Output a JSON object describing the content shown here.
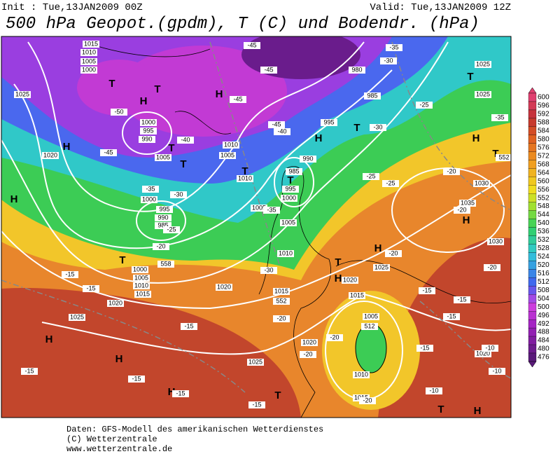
{
  "header": {
    "init": "Init : Tue,13JAN2009 00Z",
    "valid": "Valid: Tue,13JAN2009 12Z",
    "title": "500 hPa Geopot.(gpdm), T (C) und Bodendr. (hPa)"
  },
  "colorbar": {
    "ticks": [
      600,
      596,
      592,
      588,
      584,
      580,
      576,
      572,
      568,
      564,
      560,
      556,
      552,
      548,
      544,
      540,
      536,
      532,
      528,
      524,
      520,
      516,
      512,
      508,
      504,
      500,
      496,
      492,
      488,
      484,
      480,
      476
    ]
  },
  "footer": [
    "Daten: GFS-Modell des amerikanischen Wetterdienstes",
    "(C) Wetterzentrale",
    "www.wetterzentrale.de"
  ],
  "map_labels": [
    "T",
    "T",
    "H",
    "H",
    "T",
    "T",
    "H",
    "H",
    "T",
    "T",
    "H",
    "T",
    "T",
    "H",
    "T",
    "H",
    "H",
    "T",
    "H",
    "T",
    "H",
    "H",
    "H",
    "T",
    "T",
    "H",
    "1015",
    "1010",
    "1005",
    "1000",
    "1025",
    "1000",
    "995",
    "990",
    "1020",
    "1005",
    "1010",
    "1005",
    "1010",
    "985",
    "990",
    "995",
    "1000",
    "1005",
    "1000",
    "995",
    "990",
    "985",
    "1000",
    "1005",
    "1010",
    "1015",
    "1020",
    "1025",
    "1020",
    "1015",
    "1010",
    "1005",
    "980",
    "985",
    "995",
    "1025",
    "1025",
    "1030",
    "1035",
    "1030",
    "1025",
    "1020",
    "1015",
    "1005",
    "1020",
    "1025",
    "1010",
    "1015",
    "1020",
    "-50",
    "-45",
    "-40",
    "-35",
    "-30",
    "-25",
    "-20",
    "-15",
    "-15",
    "-15",
    "-15",
    "-15",
    "-15",
    "-15",
    "-45",
    "-45",
    "-45",
    "-45",
    "-40",
    "-35",
    "-30",
    "-25",
    "-30",
    "-25",
    "-20",
    "-20",
    "-20",
    "-20",
    "-15",
    "-15",
    "-15",
    "-15",
    "-10",
    "-10",
    "-10",
    "-20",
    "-20",
    "-20",
    "-20",
    "-35",
    "-30",
    "-25",
    "-35",
    "552",
    "552",
    "558",
    "512"
  ]
}
